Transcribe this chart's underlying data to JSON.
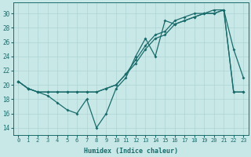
{
  "xlabel": "Humidex (Indice chaleur)",
  "background_color": "#c8e8e8",
  "grid_color": "#afd4d4",
  "line_color": "#1a6b6b",
  "xlim": [
    -0.5,
    23.5
  ],
  "ylim": [
    13,
    31.5
  ],
  "xticks": [
    0,
    1,
    2,
    3,
    4,
    5,
    6,
    7,
    8,
    9,
    10,
    11,
    12,
    13,
    14,
    15,
    16,
    17,
    18,
    19,
    20,
    21,
    22,
    23
  ],
  "yticks": [
    14,
    16,
    18,
    20,
    22,
    24,
    26,
    28,
    30
  ],
  "line1_x": [
    0,
    1,
    2,
    3,
    4,
    5,
    6,
    7,
    8,
    9,
    10,
    11,
    12,
    13,
    14,
    15,
    16,
    17,
    18,
    19,
    20,
    21,
    22,
    23
  ],
  "line1_y": [
    20.5,
    19.5,
    19.0,
    18.5,
    17.5,
    16.5,
    16.0,
    18.0,
    14.0,
    16.0,
    19.5,
    21.0,
    24.0,
    26.5,
    24.0,
    29.0,
    28.5,
    29.0,
    29.5,
    30.0,
    30.0,
    30.5,
    25.0,
    21.0
  ],
  "line2_x": [
    0,
    1,
    2,
    3,
    4,
    5,
    6,
    7,
    8,
    9,
    10,
    11,
    12,
    13,
    14,
    15,
    16,
    17,
    18,
    19,
    20,
    21,
    22,
    23
  ],
  "line2_y": [
    20.5,
    19.5,
    19.0,
    19.0,
    19.0,
    19.0,
    19.0,
    19.0,
    19.0,
    19.5,
    20.0,
    21.5,
    23.5,
    25.5,
    27.0,
    27.5,
    29.0,
    29.5,
    30.0,
    30.0,
    30.5,
    30.5,
    19.0,
    19.0
  ],
  "line3_x": [
    0,
    1,
    2,
    3,
    4,
    5,
    6,
    7,
    8,
    9,
    10,
    11,
    12,
    13,
    14,
    15,
    16,
    17,
    18,
    19,
    20,
    21,
    22,
    23
  ],
  "line3_y": [
    20.5,
    19.5,
    19.0,
    19.0,
    19.0,
    19.0,
    19.0,
    19.0,
    19.0,
    19.5,
    20.0,
    21.5,
    23.0,
    25.0,
    26.5,
    27.0,
    28.5,
    29.0,
    29.5,
    30.0,
    30.0,
    30.5,
    19.0,
    19.0
  ]
}
